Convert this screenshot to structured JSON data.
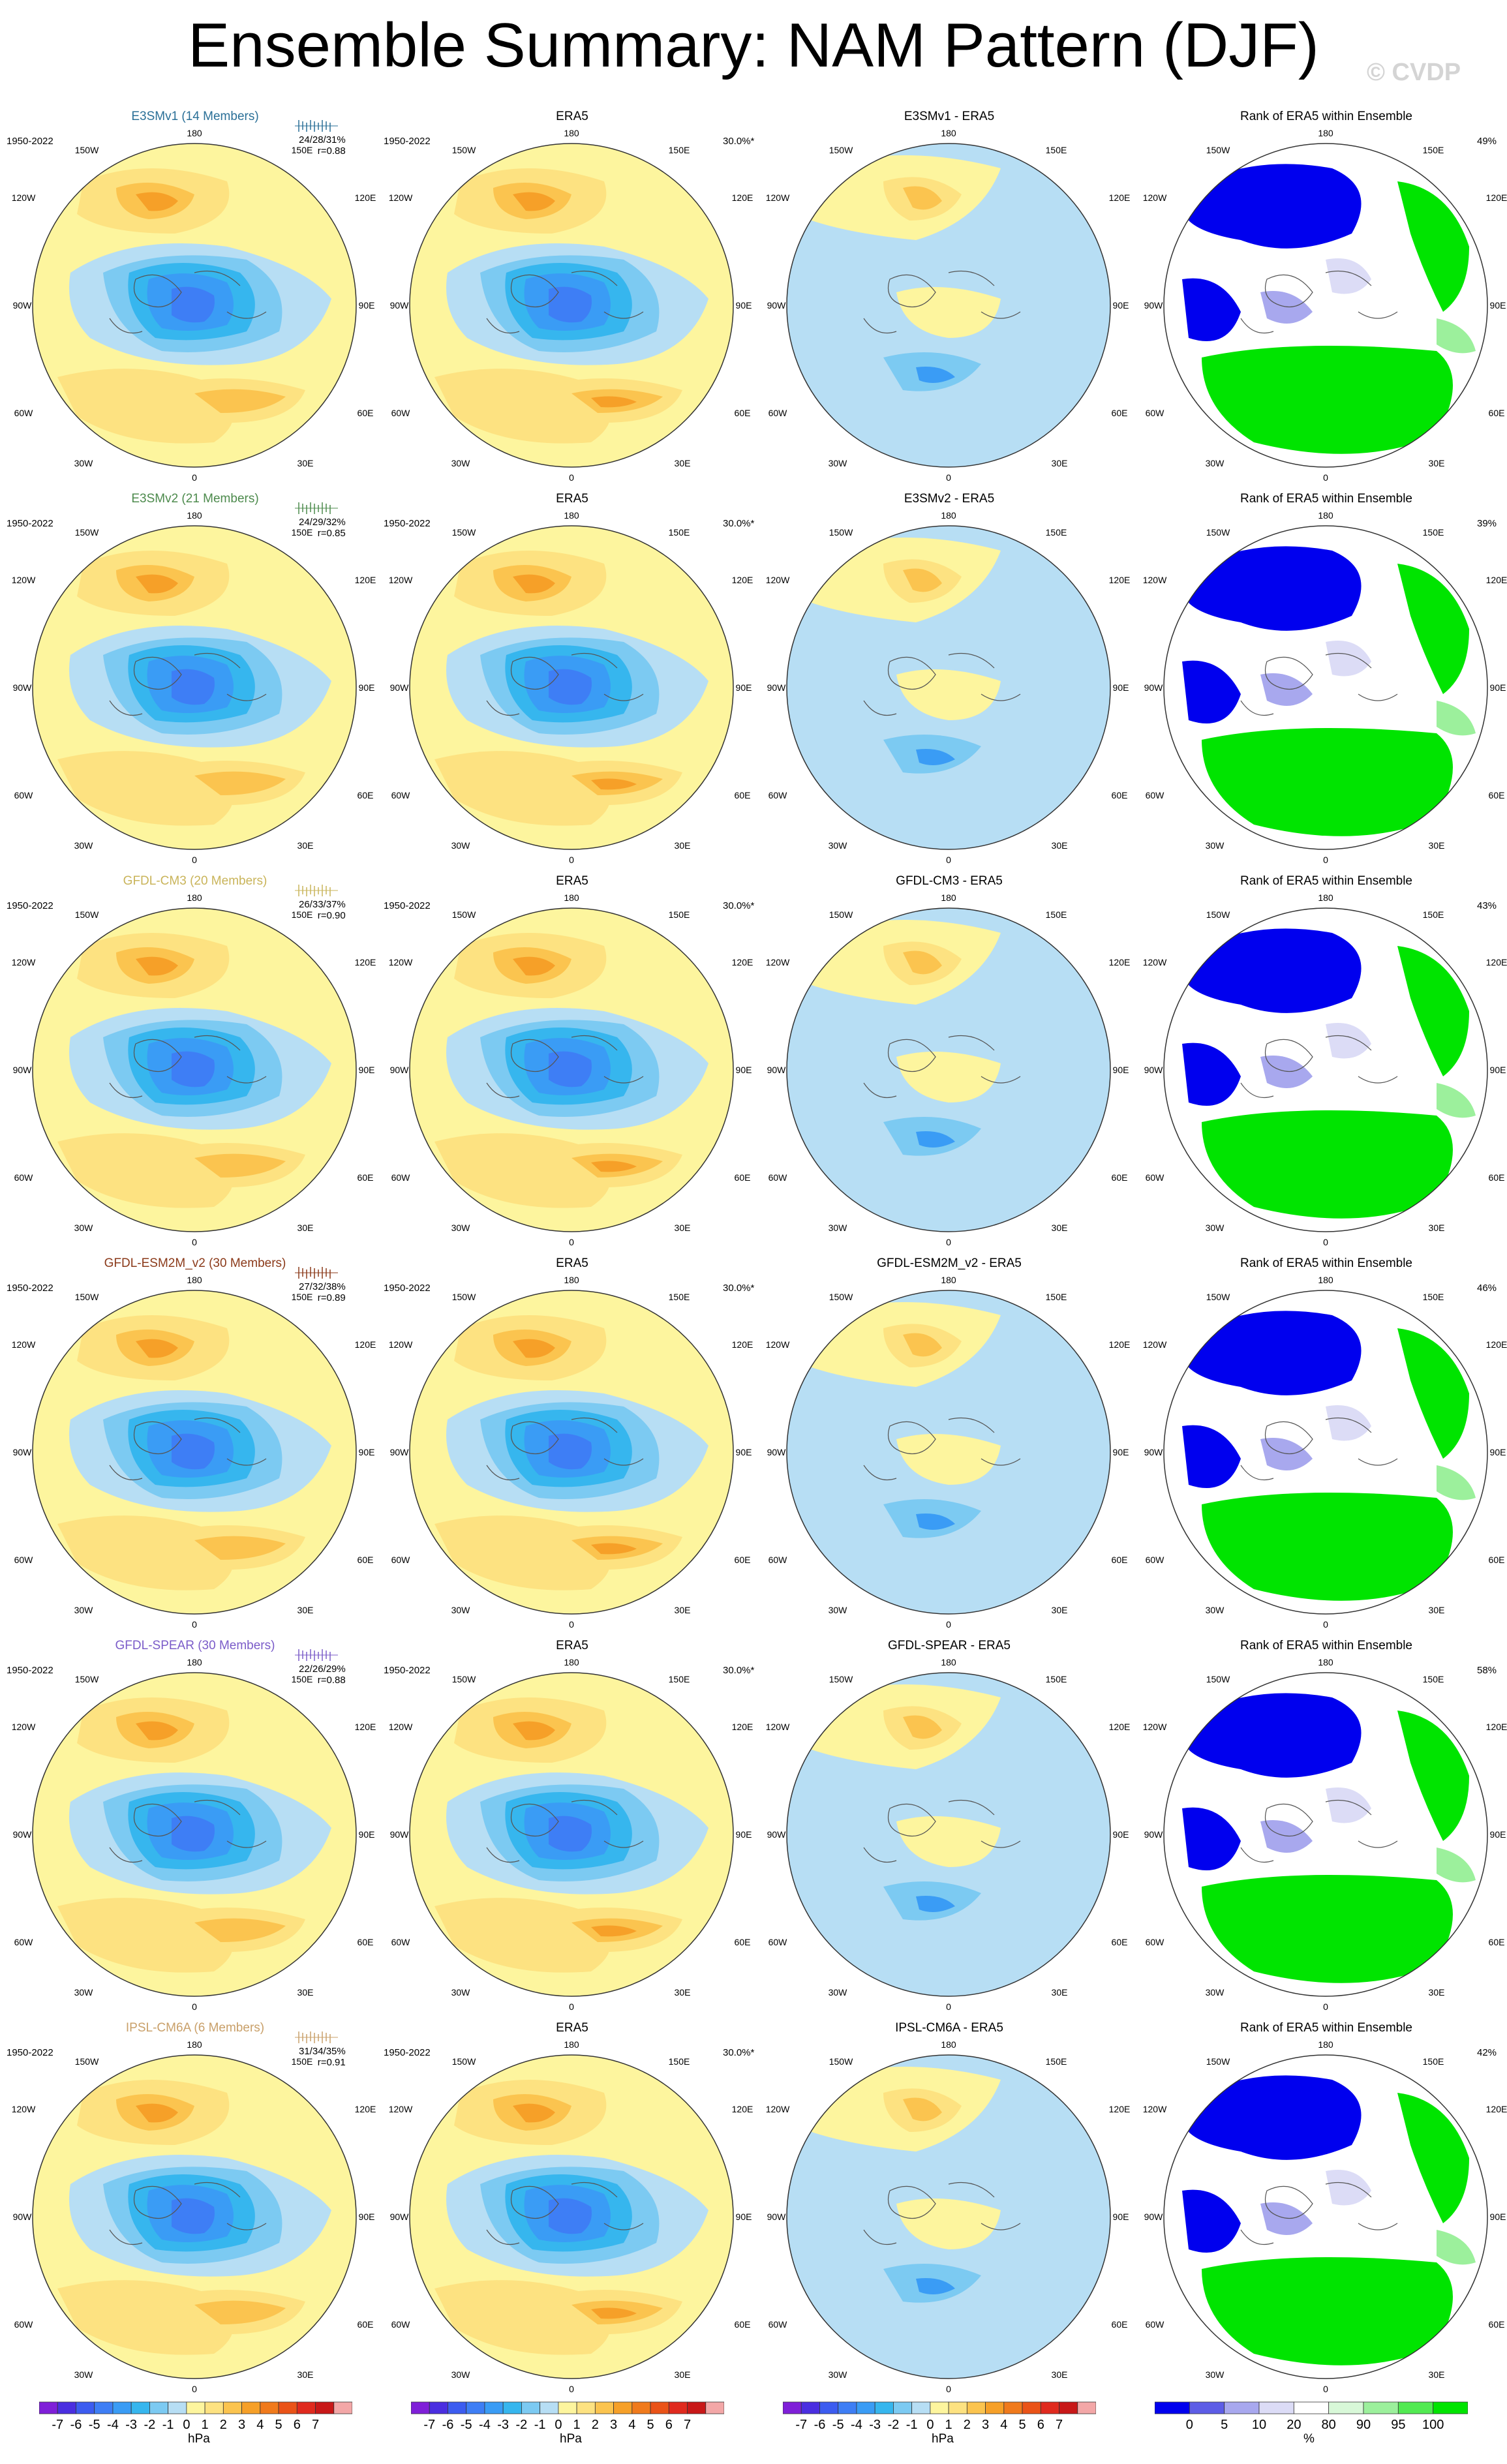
{
  "title": "Ensemble Summary: NAM Pattern (DJF)",
  "watermark": "© CVDP",
  "longitude_labels": {
    "top": "180",
    "tl": "150W",
    "tr": "150E",
    "ul": "120W",
    "ur": "120E",
    "l": "90W",
    "r": "90E",
    "ll": "60W",
    "lr": "60E",
    "bl": "30W",
    "br": "30E",
    "bottom": "0"
  },
  "rows": [
    {
      "model": "E3SMv1 (14 Members)",
      "model_color": "#2a6f97",
      "period": "1950-2022",
      "stats": "24/28/31%",
      "r": "r=0.88",
      "obs": "ERA5",
      "obs_pct": "30.0%*",
      "diff": "E3SMv1 - ERA5",
      "rank_title": "Rank of ERA5 within Ensemble",
      "rank_pct": "49%"
    },
    {
      "model": "E3SMv2 (21 Members)",
      "model_color": "#4c8a4c",
      "period": "1950-2022",
      "stats": "24/29/32%",
      "r": "r=0.85",
      "obs": "ERA5",
      "obs_pct": "30.0%*",
      "diff": "E3SMv2 - ERA5",
      "rank_title": "Rank of ERA5 within Ensemble",
      "rank_pct": "39%"
    },
    {
      "model": "GFDL-CM3 (20 Members)",
      "model_color": "#c9b45a",
      "period": "1950-2022",
      "stats": "26/33/37%",
      "r": "r=0.90",
      "obs": "ERA5",
      "obs_pct": "30.0%*",
      "diff": "GFDL-CM3 - ERA5",
      "rank_title": "Rank of ERA5 within Ensemble",
      "rank_pct": "43%"
    },
    {
      "model": "GFDL-ESM2M_v2 (30 Members)",
      "model_color": "#8b3a1a",
      "period": "1950-2022",
      "stats": "27/32/38%",
      "r": "r=0.89",
      "obs": "ERA5",
      "obs_pct": "30.0%*",
      "diff": "GFDL-ESM2M_v2 - ERA5",
      "rank_title": "Rank of ERA5 within Ensemble",
      "rank_pct": "46%"
    },
    {
      "model": "GFDL-SPEAR (30 Members)",
      "model_color": "#7b5cc9",
      "period": "1950-2022",
      "stats": "22/26/29%",
      "r": "r=0.88",
      "obs": "ERA5",
      "obs_pct": "30.0%*",
      "diff": "GFDL-SPEAR - ERA5",
      "rank_title": "Rank of ERA5 within Ensemble",
      "rank_pct": "58%"
    },
    {
      "model": "IPSL-CM6A (6 Members)",
      "model_color": "#c9a06a",
      "period": "1950-2022",
      "stats": "31/34/35%",
      "r": "r=0.91",
      "obs": "ERA5",
      "obs_pct": "30.0%*",
      "diff": "IPSL-CM6A - ERA5",
      "rank_title": "Rank of ERA5 within Ensemble",
      "rank_pct": "42%"
    }
  ],
  "colorbar_hpa": {
    "unit": "hPa",
    "ticks": [
      "-7",
      "-6",
      "-5",
      "-4",
      "-3",
      "-2",
      "-1",
      "0",
      "1",
      "2",
      "3",
      "4",
      "5",
      "6",
      "7"
    ],
    "colors": [
      "#7f1fd8",
      "#4a2ee0",
      "#3c5cf0",
      "#3e7ef5",
      "#3a9cf5",
      "#36b6ee",
      "#7ccaf2",
      "#b7def4",
      "#fdf59e",
      "#fde281",
      "#fbc44f",
      "#f6a028",
      "#f07a1c",
      "#ea5318",
      "#e02a1e",
      "#c81818",
      "#f3a7a7"
    ]
  },
  "colorbar_rank": {
    "unit": "%",
    "ticks": [
      "0",
      "5",
      "10",
      "20",
      "80",
      "90",
      "95",
      "100"
    ],
    "colors": [
      "#0000ee",
      "#5d5de6",
      "#a8a8ee",
      "#dcdcf6",
      "#ffffff",
      "#d8f8d8",
      "#9cf09c",
      "#52ea52",
      "#00e400"
    ]
  }
}
